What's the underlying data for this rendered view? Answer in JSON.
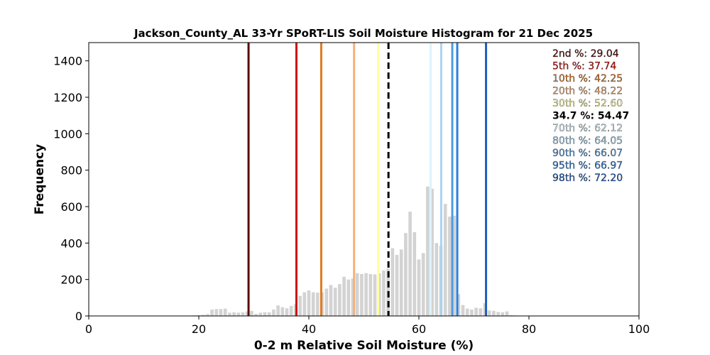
{
  "chart_data": {
    "type": "bar",
    "title": "Jackson_County_AL 33-Yr SPoRT-LIS Soil Moisture Histogram for 21 Dec 2025",
    "xlabel": "0-2 m Relative Soil Moisture (%)",
    "ylabel": "Frequency",
    "xlim": [
      0,
      100
    ],
    "ylim": [
      0,
      1500
    ],
    "xticks": [
      0,
      20,
      40,
      60,
      80,
      100
    ],
    "yticks": [
      0,
      200,
      400,
      600,
      800,
      1000,
      1200,
      1400
    ],
    "grid": false,
    "legend_placement": "top-right",
    "bar_color": "#d3d3d3",
    "bins": [
      {
        "x": 19.2,
        "y": 3
      },
      {
        "x": 20.0,
        "y": 4
      },
      {
        "x": 20.8,
        "y": 6
      },
      {
        "x": 21.6,
        "y": 10
      },
      {
        "x": 22.4,
        "y": 35
      },
      {
        "x": 23.2,
        "y": 38
      },
      {
        "x": 24.0,
        "y": 38
      },
      {
        "x": 24.8,
        "y": 40
      },
      {
        "x": 25.6,
        "y": 18
      },
      {
        "x": 26.4,
        "y": 20
      },
      {
        "x": 27.2,
        "y": 18
      },
      {
        "x": 28.0,
        "y": 20
      },
      {
        "x": 28.8,
        "y": 25
      },
      {
        "x": 29.6,
        "y": 28
      },
      {
        "x": 30.4,
        "y": 12
      },
      {
        "x": 31.2,
        "y": 18
      },
      {
        "x": 32.0,
        "y": 20
      },
      {
        "x": 32.8,
        "y": 20
      },
      {
        "x": 33.6,
        "y": 35
      },
      {
        "x": 34.4,
        "y": 58
      },
      {
        "x": 35.2,
        "y": 48
      },
      {
        "x": 36.0,
        "y": 42
      },
      {
        "x": 36.8,
        "y": 55
      },
      {
        "x": 37.6,
        "y": 65
      },
      {
        "x": 38.4,
        "y": 110
      },
      {
        "x": 39.2,
        "y": 130
      },
      {
        "x": 40.0,
        "y": 140
      },
      {
        "x": 40.8,
        "y": 130
      },
      {
        "x": 41.6,
        "y": 128
      },
      {
        "x": 42.4,
        "y": 130
      },
      {
        "x": 43.2,
        "y": 150
      },
      {
        "x": 44.0,
        "y": 170
      },
      {
        "x": 44.8,
        "y": 155
      },
      {
        "x": 45.6,
        "y": 175
      },
      {
        "x": 46.4,
        "y": 215
      },
      {
        "x": 47.2,
        "y": 200
      },
      {
        "x": 48.0,
        "y": 205
      },
      {
        "x": 48.8,
        "y": 235
      },
      {
        "x": 49.6,
        "y": 230
      },
      {
        "x": 50.4,
        "y": 235
      },
      {
        "x": 51.2,
        "y": 230
      },
      {
        "x": 52.0,
        "y": 228
      },
      {
        "x": 52.8,
        "y": 235
      },
      {
        "x": 53.6,
        "y": 250
      },
      {
        "x": 54.4,
        "y": 260
      },
      {
        "x": 55.2,
        "y": 372
      },
      {
        "x": 56.0,
        "y": 335
      },
      {
        "x": 56.8,
        "y": 365
      },
      {
        "x": 57.6,
        "y": 455
      },
      {
        "x": 58.4,
        "y": 572
      },
      {
        "x": 59.2,
        "y": 460
      },
      {
        "x": 60.0,
        "y": 310
      },
      {
        "x": 60.8,
        "y": 345
      },
      {
        "x": 61.6,
        "y": 710
      },
      {
        "x": 62.4,
        "y": 698
      },
      {
        "x": 63.2,
        "y": 400
      },
      {
        "x": 64.0,
        "y": 385
      },
      {
        "x": 64.8,
        "y": 615
      },
      {
        "x": 65.6,
        "y": 545
      },
      {
        "x": 66.4,
        "y": 550
      },
      {
        "x": 67.2,
        "y": 120
      },
      {
        "x": 68.0,
        "y": 60
      },
      {
        "x": 68.8,
        "y": 40
      },
      {
        "x": 69.6,
        "y": 35
      },
      {
        "x": 70.4,
        "y": 45
      },
      {
        "x": 71.2,
        "y": 42
      },
      {
        "x": 72.0,
        "y": 70
      },
      {
        "x": 72.8,
        "y": 30
      },
      {
        "x": 73.6,
        "y": 28
      },
      {
        "x": 74.4,
        "y": 22
      },
      {
        "x": 75.2,
        "y": 20
      },
      {
        "x": 76.0,
        "y": 25
      },
      {
        "x": 76.8,
        "y": 5
      },
      {
        "x": 77.6,
        "y": 3
      }
    ],
    "percentile_lines": [
      {
        "label": "2nd %",
        "value": "29.04",
        "x": 29.04,
        "color": "#5c0a0a",
        "style": "solid"
      },
      {
        "label": "5th %",
        "value": "37.74",
        "x": 37.74,
        "color": "#cc1111",
        "style": "solid"
      },
      {
        "label": "10th %",
        "value": "42.25",
        "x": 42.25,
        "color": "#e07b20",
        "style": "solid"
      },
      {
        "label": "20th %",
        "value": "48.22",
        "x": 48.22,
        "color": "#f4b07a",
        "style": "solid"
      },
      {
        "label": "30th %",
        "value": "52.60",
        "x": 52.6,
        "color": "#ffff99",
        "style": "solid"
      },
      {
        "label": "34.7 %",
        "value": "54.47",
        "x": 54.47,
        "color": "#000000",
        "style": "dashed"
      },
      {
        "label": "70th %",
        "value": "62.12",
        "x": 62.12,
        "color": "#ddf3fb",
        "style": "solid"
      },
      {
        "label": "80th %",
        "value": "64.05",
        "x": 64.05,
        "color": "#a8d4f0",
        "style": "solid"
      },
      {
        "label": "90th %",
        "value": "66.07",
        "x": 66.07,
        "color": "#4f9be0",
        "style": "solid"
      },
      {
        "label": "95th %",
        "value": "66.97",
        "x": 66.97,
        "color": "#2a7fdc",
        "style": "solid"
      },
      {
        "label": "98th %",
        "value": "72.20",
        "x": 72.2,
        "color": "#1f5fbf",
        "style": "solid"
      }
    ]
  }
}
